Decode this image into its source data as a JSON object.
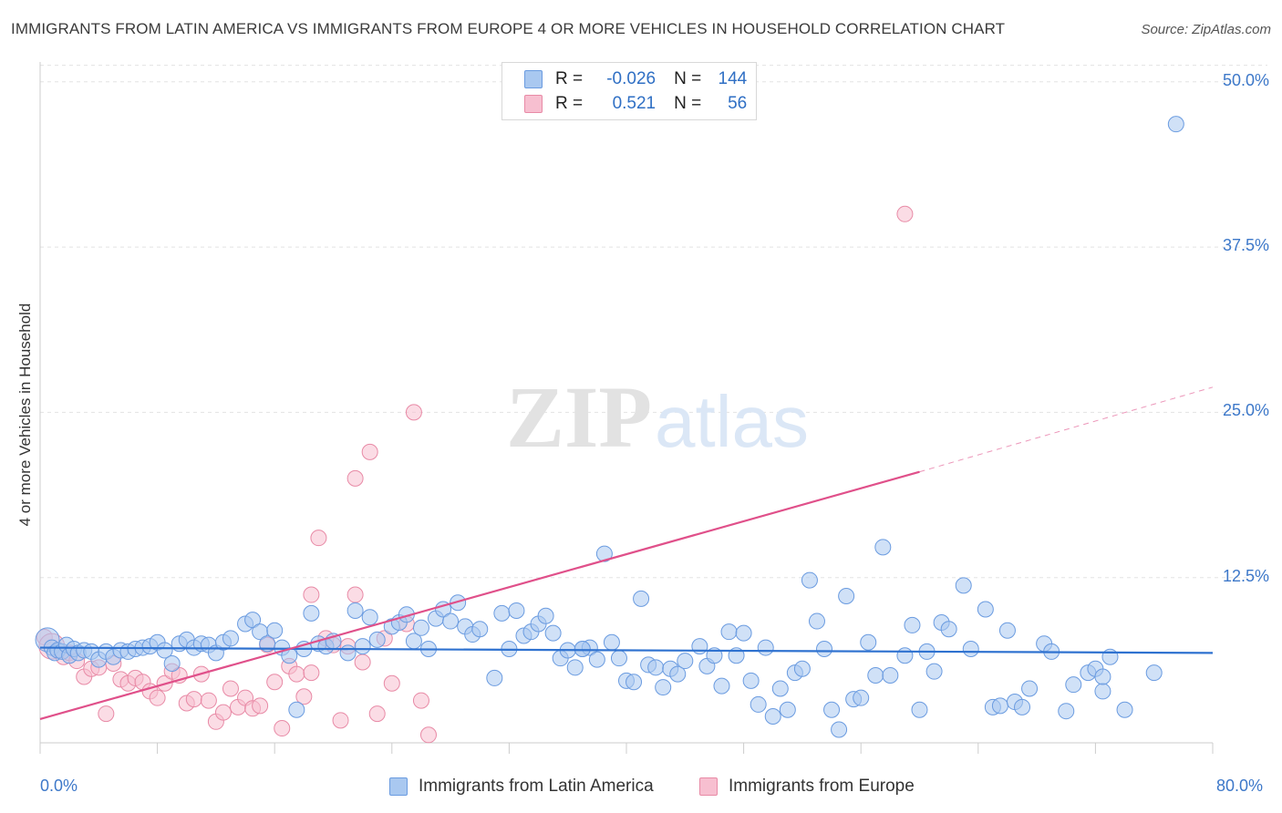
{
  "title": "IMMIGRANTS FROM LATIN AMERICA VS IMMIGRANTS FROM EUROPE 4 OR MORE VEHICLES IN HOUSEHOLD CORRELATION CHART",
  "source": "Source: ZipAtlas.com",
  "watermark": {
    "zip": "ZIP",
    "atlas": "atlas"
  },
  "legend": {
    "r_label": "R =",
    "n_label": "N =",
    "rows": [
      {
        "r": "-0.026",
        "n": "144",
        "color": "#a9c8f0"
      },
      {
        "r": "0.521",
        "n": "56",
        "color": "#f5b5c8"
      }
    ]
  },
  "colors": {
    "blue_fill": "#a9c8f0",
    "blue_stroke": "#6a9be0",
    "blue_line": "#2f72d0",
    "pink_fill": "#f7bfd0",
    "pink_stroke": "#e88aa6",
    "pink_line": "#e0508a",
    "grid": "#e3e3e3",
    "tick_text": "#3d78c9"
  },
  "chart_data": {
    "type": "scatter",
    "title": "IMMIGRANTS FROM LATIN AMERICA VS IMMIGRANTS FROM EUROPE 4 OR MORE VEHICLES IN HOUSEHOLD CORRELATION CHART",
    "xlabel": "",
    "ylabel": "4 or more Vehicles in Household",
    "xlim": [
      0,
      80
    ],
    "ylim": [
      0,
      51.5
    ],
    "x_tick_labels": [
      "0.0%",
      "80.0%"
    ],
    "y_ticks": [
      12.5,
      25.0,
      37.5,
      50.0
    ],
    "y_tick_labels": [
      "12.5%",
      "25.0%",
      "37.5%",
      "50.0%"
    ],
    "grid": true,
    "legend_position": "top-center",
    "series": [
      {
        "name": "Immigrants from Latin America",
        "trend": {
          "x0": 0,
          "y0": 7.2,
          "x1": 80,
          "y1": 6.8
        },
        "points": [
          [
            0.5,
            7.8
          ],
          [
            0.8,
            7.2
          ],
          [
            1.0,
            6.8
          ],
          [
            1.2,
            7.0
          ],
          [
            1.5,
            6.9
          ],
          [
            1.8,
            7.4
          ],
          [
            2.0,
            6.6
          ],
          [
            2.3,
            7.1
          ],
          [
            2.6,
            6.8
          ],
          [
            3.0,
            7.0
          ],
          [
            3.5,
            6.9
          ],
          [
            4.0,
            6.3
          ],
          [
            4.5,
            6.9
          ],
          [
            5.0,
            6.5
          ],
          [
            5.5,
            7.0
          ],
          [
            6.0,
            6.9
          ],
          [
            6.5,
            7.1
          ],
          [
            7.0,
            7.2
          ],
          [
            7.5,
            7.3
          ],
          [
            8.0,
            7.6
          ],
          [
            8.5,
            7.0
          ],
          [
            9.0,
            6.0
          ],
          [
            9.5,
            7.5
          ],
          [
            10.0,
            7.8
          ],
          [
            10.5,
            7.2
          ],
          [
            11.0,
            7.5
          ],
          [
            11.5,
            7.4
          ],
          [
            12.0,
            6.8
          ],
          [
            12.5,
            7.6
          ],
          [
            13.0,
            7.9
          ],
          [
            14.0,
            9.0
          ],
          [
            14.5,
            9.3
          ],
          [
            15.0,
            8.4
          ],
          [
            15.5,
            7.5
          ],
          [
            16.0,
            8.5
          ],
          [
            16.5,
            7.2
          ],
          [
            17.0,
            6.6
          ],
          [
            17.5,
            2.5
          ],
          [
            18.0,
            7.1
          ],
          [
            18.5,
            9.8
          ],
          [
            19.0,
            7.5
          ],
          [
            19.5,
            7.3
          ],
          [
            20.0,
            7.7
          ],
          [
            21.0,
            6.8
          ],
          [
            21.5,
            10.0
          ],
          [
            22.0,
            7.3
          ],
          [
            22.5,
            9.5
          ],
          [
            23.0,
            7.8
          ],
          [
            24.0,
            8.8
          ],
          [
            24.5,
            9.1
          ],
          [
            25.0,
            9.7
          ],
          [
            25.5,
            7.7
          ],
          [
            26.0,
            8.7
          ],
          [
            26.5,
            7.1
          ],
          [
            27.0,
            9.4
          ],
          [
            27.5,
            10.1
          ],
          [
            28.0,
            9.2
          ],
          [
            28.5,
            10.6
          ],
          [
            29.0,
            8.8
          ],
          [
            29.5,
            8.2
          ],
          [
            30.0,
            8.6
          ],
          [
            31.0,
            4.9
          ],
          [
            31.5,
            9.8
          ],
          [
            32.0,
            7.1
          ],
          [
            32.5,
            10.0
          ],
          [
            33.0,
            8.1
          ],
          [
            33.5,
            8.4
          ],
          [
            34.0,
            9.0
          ],
          [
            34.5,
            9.6
          ],
          [
            35.0,
            8.3
          ],
          [
            35.5,
            6.4
          ],
          [
            36.0,
            7.0
          ],
          [
            36.5,
            5.7
          ],
          [
            37.0,
            7.1
          ],
          [
            37.5,
            7.2
          ],
          [
            38.0,
            6.3
          ],
          [
            38.5,
            14.3
          ],
          [
            39.0,
            7.6
          ],
          [
            39.5,
            6.4
          ],
          [
            40.0,
            4.7
          ],
          [
            40.5,
            4.6
          ],
          [
            41.0,
            10.9
          ],
          [
            41.5,
            5.9
          ],
          [
            42.0,
            5.7
          ],
          [
            42.5,
            4.2
          ],
          [
            43.0,
            5.6
          ],
          [
            43.5,
            5.2
          ],
          [
            44.0,
            6.2
          ],
          [
            45.0,
            7.3
          ],
          [
            45.5,
            5.8
          ],
          [
            46.0,
            6.6
          ],
          [
            46.5,
            4.3
          ],
          [
            47.0,
            8.4
          ],
          [
            47.5,
            6.6
          ],
          [
            48.0,
            8.3
          ],
          [
            48.5,
            4.7
          ],
          [
            49.0,
            2.9
          ],
          [
            49.5,
            7.2
          ],
          [
            50.0,
            2.0
          ],
          [
            50.5,
            4.1
          ],
          [
            51.0,
            2.5
          ],
          [
            51.5,
            5.3
          ],
          [
            52.0,
            5.6
          ],
          [
            52.5,
            12.3
          ],
          [
            53.0,
            9.2
          ],
          [
            53.5,
            7.1
          ],
          [
            54.0,
            2.5
          ],
          [
            54.5,
            1.0
          ],
          [
            55.0,
            11.1
          ],
          [
            55.5,
            3.3
          ],
          [
            56.0,
            3.4
          ],
          [
            56.5,
            7.6
          ],
          [
            57.0,
            5.1
          ],
          [
            57.5,
            14.8
          ],
          [
            58.0,
            5.1
          ],
          [
            59.0,
            6.6
          ],
          [
            59.5,
            8.9
          ],
          [
            60.0,
            2.5
          ],
          [
            60.5,
            6.9
          ],
          [
            61.0,
            5.4
          ],
          [
            61.5,
            9.1
          ],
          [
            62.0,
            8.6
          ],
          [
            63.0,
            11.9
          ],
          [
            63.5,
            7.1
          ],
          [
            64.5,
            10.1
          ],
          [
            65.0,
            2.7
          ],
          [
            65.5,
            2.8
          ],
          [
            66.0,
            8.5
          ],
          [
            66.5,
            3.1
          ],
          [
            67.0,
            2.7
          ],
          [
            67.5,
            4.1
          ],
          [
            68.5,
            7.5
          ],
          [
            69.0,
            6.9
          ],
          [
            70.0,
            2.4
          ],
          [
            70.5,
            4.4
          ],
          [
            71.5,
            5.3
          ],
          [
            72.0,
            5.6
          ],
          [
            72.5,
            3.9
          ],
          [
            73.0,
            6.5
          ],
          [
            74.0,
            2.5
          ],
          [
            76.0,
            5.3
          ],
          [
            77.5,
            46.8
          ],
          [
            72.5,
            5.0
          ],
          [
            37.0,
            7.1
          ]
        ]
      },
      {
        "name": "Immigrants from Europe",
        "trend": {
          "x0": 0,
          "y0": 1.8,
          "x1": 60,
          "y1": 20.5,
          "x_dash_end": 80,
          "y_dash_end": 26.9
        },
        "points": [
          [
            0.3,
            8.0
          ],
          [
            0.8,
            7.3
          ],
          [
            1.2,
            7.0
          ],
          [
            1.6,
            6.5
          ],
          [
            2.0,
            6.8
          ],
          [
            2.5,
            6.2
          ],
          [
            3.0,
            5.0
          ],
          [
            3.5,
            5.6
          ],
          [
            4.0,
            5.7
          ],
          [
            4.5,
            2.2
          ],
          [
            5.0,
            6.0
          ],
          [
            5.5,
            4.8
          ],
          [
            6.0,
            4.5
          ],
          [
            6.5,
            4.9
          ],
          [
            7.0,
            4.6
          ],
          [
            7.5,
            3.9
          ],
          [
            8.0,
            3.4
          ],
          [
            8.5,
            4.5
          ],
          [
            9.0,
            5.4
          ],
          [
            9.5,
            5.1
          ],
          [
            10.0,
            3.0
          ],
          [
            10.5,
            3.3
          ],
          [
            11.0,
            5.2
          ],
          [
            11.5,
            3.2
          ],
          [
            12.0,
            1.6
          ],
          [
            12.5,
            2.3
          ],
          [
            13.0,
            4.1
          ],
          [
            13.5,
            2.7
          ],
          [
            14.0,
            3.4
          ],
          [
            14.5,
            2.6
          ],
          [
            15.0,
            2.8
          ],
          [
            15.5,
            7.4
          ],
          [
            16.0,
            4.6
          ],
          [
            16.5,
            1.1
          ],
          [
            17.0,
            5.8
          ],
          [
            17.5,
            5.2
          ],
          [
            18.0,
            3.5
          ],
          [
            18.5,
            5.3
          ],
          [
            19.0,
            15.5
          ],
          [
            19.5,
            7.9
          ],
          [
            20.0,
            7.4
          ],
          [
            20.5,
            1.7
          ],
          [
            21.0,
            7.3
          ],
          [
            21.5,
            11.2
          ],
          [
            22.0,
            6.1
          ],
          [
            22.5,
            22.0
          ],
          [
            23.0,
            2.2
          ],
          [
            23.5,
            7.9
          ],
          [
            24.0,
            4.5
          ],
          [
            25.0,
            9.0
          ],
          [
            25.5,
            25.0
          ],
          [
            26.0,
            3.2
          ],
          [
            26.5,
            0.6
          ],
          [
            21.5,
            20.0
          ],
          [
            59.0,
            40.0
          ],
          [
            18.5,
            11.2
          ]
        ]
      }
    ]
  },
  "bottom_legend": [
    "Immigrants from Latin America",
    "Immigrants from Europe"
  ]
}
